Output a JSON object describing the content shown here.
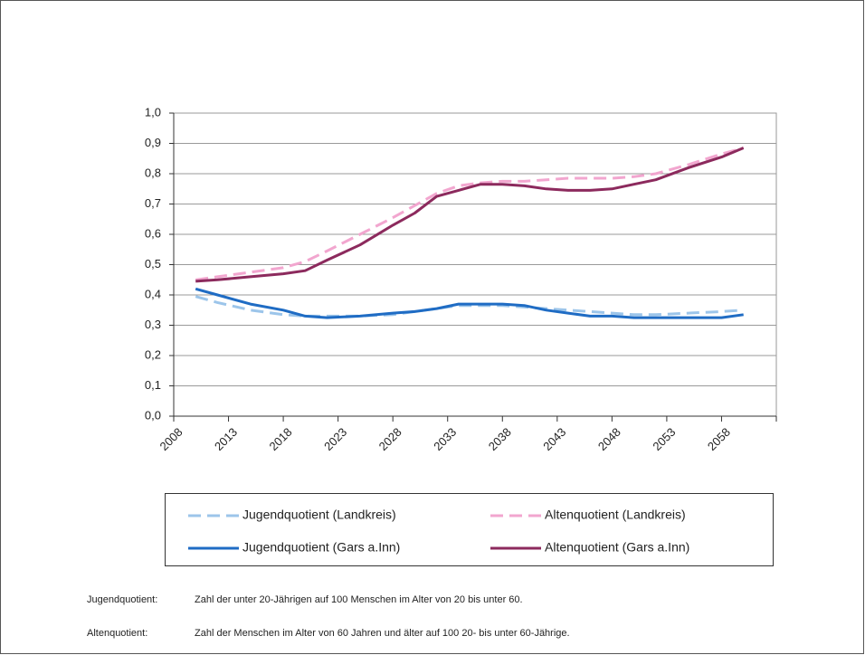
{
  "chart_data": {
    "type": "line",
    "x": [
      2010,
      2012,
      2015,
      2018,
      2020,
      2022,
      2025,
      2028,
      2030,
      2032,
      2034,
      2036,
      2038,
      2040,
      2042,
      2044,
      2046,
      2048,
      2050,
      2052,
      2055,
      2058,
      2060
    ],
    "xlim": [
      2008,
      2063
    ],
    "xticks": [
      2008,
      2013,
      2018,
      2023,
      2028,
      2033,
      2038,
      2043,
      2048,
      2053,
      2058
    ],
    "ylim": [
      0,
      1
    ],
    "yticks": [
      {
        "value": 0,
        "label": "0,0"
      },
      {
        "value": 0.1,
        "label": "0,1"
      },
      {
        "value": 0.2,
        "label": "0,2"
      },
      {
        "value": 0.3,
        "label": "0,3"
      },
      {
        "value": 0.4,
        "label": "0,4"
      },
      {
        "value": 0.5,
        "label": "0,5"
      },
      {
        "value": 0.6,
        "label": "0,6"
      },
      {
        "value": 0.7,
        "label": "0,7"
      },
      {
        "value": 0.8,
        "label": "0,8"
      },
      {
        "value": 0.9,
        "label": "0,9"
      },
      {
        "value": 1,
        "label": "1,0"
      }
    ],
    "grid": true,
    "series": [
      {
        "name": "Jugendquotient (Landkreis)",
        "color": "#9cc5ea",
        "line_style": "dashed",
        "values": [
          0.395,
          0.375,
          0.35,
          0.335,
          0.33,
          0.33,
          0.33,
          0.335,
          0.345,
          0.355,
          0.365,
          0.365,
          0.365,
          0.36,
          0.355,
          0.35,
          0.345,
          0.34,
          0.335,
          0.335,
          0.34,
          0.345,
          0.35
        ]
      },
      {
        "name": "Altenquotient (Landkreis)",
        "color": "#f2a6cf",
        "line_style": "dashed",
        "values": [
          0.45,
          0.46,
          0.475,
          0.49,
          0.51,
          0.545,
          0.6,
          0.655,
          0.695,
          0.735,
          0.76,
          0.77,
          0.775,
          0.775,
          0.78,
          0.785,
          0.785,
          0.785,
          0.79,
          0.8,
          0.83,
          0.865,
          0.885
        ]
      },
      {
        "name": "Jugendquotient (Gars a.Inn)",
        "color": "#1f6cc4",
        "line_style": "solid",
        "values": [
          0.42,
          0.4,
          0.37,
          0.35,
          0.33,
          0.325,
          0.33,
          0.34,
          0.345,
          0.355,
          0.37,
          0.37,
          0.37,
          0.365,
          0.35,
          0.34,
          0.33,
          0.33,
          0.325,
          0.325,
          0.325,
          0.325,
          0.335
        ]
      },
      {
        "name": "Altenquotient (Gars a.Inn)",
        "color": "#8c2a5d",
        "line_style": "solid",
        "values": [
          0.445,
          0.45,
          0.46,
          0.47,
          0.48,
          0.515,
          0.565,
          0.63,
          0.67,
          0.725,
          0.745,
          0.765,
          0.765,
          0.76,
          0.75,
          0.745,
          0.745,
          0.75,
          0.765,
          0.78,
          0.82,
          0.855,
          0.885
        ]
      }
    ],
    "notes": [
      {
        "term": "Jugendquotient:",
        "text": "Zahl der unter 20-Jährigen auf 100 Menschen im Alter von 20 bis unter 60."
      },
      {
        "term": "Altenquotient:",
        "text": "Zahl der Menschen im Alter von 60 Jahren und älter auf 100 20- bis unter 60-Jährige."
      }
    ]
  }
}
